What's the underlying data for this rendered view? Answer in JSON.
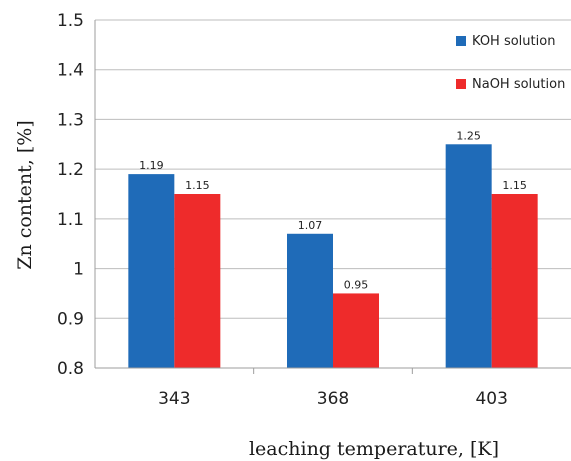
{
  "chart_data": {
    "type": "bar",
    "title": "",
    "xlabel": "leaching temperature, [K]",
    "ylabel": "Zn content, [%]",
    "categories": [
      "343",
      "368",
      "403"
    ],
    "series": [
      {
        "name": "KOH solution",
        "values": [
          1.19,
          1.07,
          1.25
        ],
        "color": "#1f6bb8"
      },
      {
        "name": "NaOH solution",
        "values": [
          1.15,
          0.95,
          1.15
        ],
        "color": "#ee2b2b"
      }
    ],
    "data_labels": [
      [
        "1.19",
        "1.07",
        "1.25"
      ],
      [
        "1.15",
        "0.95",
        "1.15"
      ]
    ],
    "ylim": [
      0.8,
      1.5
    ],
    "yticks": [
      0.8,
      0.9,
      1,
      1.1,
      1.2,
      1.3,
      1.4,
      1.5
    ],
    "ytick_labels": [
      "0.8",
      "0.9",
      "1",
      "1.1",
      "1.2",
      "1.3",
      "1.4",
      "1.5"
    ],
    "grid": "horizontal",
    "legend_position": "top-right"
  }
}
